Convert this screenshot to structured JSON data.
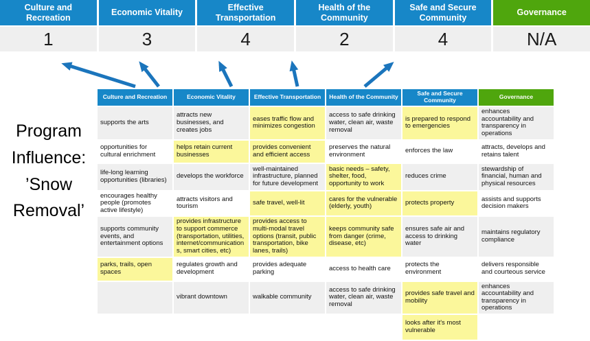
{
  "program_label": "Program Influence: ’Snow Removal’",
  "colors": {
    "header_blue": "#1787C8",
    "governance_green": "#4FA60D",
    "score_row_gray": "#EFEFEF",
    "row_gray": "#EFEFEF",
    "highlight_yellow": "#FBF79B",
    "arrow_blue": "#1B75BC"
  },
  "banner": {
    "columns": [
      {
        "label": "Culture and Recreation",
        "value": "1",
        "theme": "blue"
      },
      {
        "label": "Economic Vitality",
        "value": "3",
        "theme": "blue"
      },
      {
        "label": "Effective Transportation",
        "value": "4",
        "theme": "blue"
      },
      {
        "label": "Health of the Community",
        "value": "2",
        "theme": "blue"
      },
      {
        "label": "Safe and Secure Community",
        "value": "4",
        "theme": "blue"
      },
      {
        "label": "Governance",
        "value": "N/A",
        "theme": "green"
      }
    ]
  },
  "matrix": {
    "headers": [
      {
        "label": "Culture and Recreation",
        "theme": "blue"
      },
      {
        "label": "Economic Vitality",
        "theme": "blue"
      },
      {
        "label": "Effective Transportation",
        "theme": "blue"
      },
      {
        "label": "Health of the Community",
        "theme": "blue"
      },
      {
        "label": "Safe and Secure Community",
        "theme": "blue"
      },
      {
        "label": "Governance",
        "theme": "green"
      }
    ],
    "rows": [
      [
        {
          "t": "supports the arts",
          "hl": false
        },
        {
          "t": "attracts new businesses, and creates jobs",
          "hl": false
        },
        {
          "t": "eases traffic flow and minimizes congestion",
          "hl": true
        },
        {
          "t": "access to safe drinking water, clean air, waste removal",
          "hl": false
        },
        {
          "t": "is prepared to respond to emergencies",
          "hl": true
        },
        {
          "t": "enhances accountability and transparency in operations",
          "hl": false
        }
      ],
      [
        {
          "t": "opportunities for cultural enrichment",
          "hl": false
        },
        {
          "t": "helps retain current businesses",
          "hl": true
        },
        {
          "t": "provides convenient and efficient access",
          "hl": true
        },
        {
          "t": "preserves the natural environment",
          "hl": false
        },
        {
          "t": "enforces the law",
          "hl": false
        },
        {
          "t": "attracts, develops and retains talent",
          "hl": false
        }
      ],
      [
        {
          "t": "life-long learning opportunities (libraries)",
          "hl": false
        },
        {
          "t": "develops the workforce",
          "hl": false
        },
        {
          "t": "well-maintained infrastructure, planned for future development",
          "hl": false
        },
        {
          "t": "basic needs – safety, shelter, food, opportunity to work",
          "hl": true
        },
        {
          "t": "reduces crime",
          "hl": false
        },
        {
          "t": "stewardship of financial, human and physical resources",
          "hl": false
        }
      ],
      [
        {
          "t": "encourages healthy people (promotes active lifestyle)",
          "hl": false
        },
        {
          "t": "attracts visitors and tourism",
          "hl": false
        },
        {
          "t": "safe travel, well-lit",
          "hl": true
        },
        {
          "t": "cares for the vulnerable (elderly, youth)",
          "hl": true
        },
        {
          "t": "protects property",
          "hl": true
        },
        {
          "t": "assists and supports decision makers",
          "hl": false
        }
      ],
      [
        {
          "t": "supports community events, and entertainment options",
          "hl": false
        },
        {
          "t": "provides infrastructure to support commerce (transportation, utilities, internet/communications, smart cities, etc)",
          "hl": true
        },
        {
          "t": "provides access to multi-modal travel options (transit, public transportation, bike lanes, trails)",
          "hl": true
        },
        {
          "t": "keeps community safe from danger (crime, disease, etc)",
          "hl": true
        },
        {
          "t": "ensures safe air and access to drinking water",
          "hl": false
        },
        {
          "t": "maintains regulatory compliance",
          "hl": false
        }
      ],
      [
        {
          "t": "parks, trails, open spaces",
          "hl": true
        },
        {
          "t": "regulates growth and development",
          "hl": false
        },
        {
          "t": "provides adequate parking",
          "hl": false
        },
        {
          "t": "access to health care",
          "hl": false
        },
        {
          "t": "protects the environment",
          "hl": false
        },
        {
          "t": "delivers responsible and courteous service",
          "hl": false
        }
      ],
      [
        {
          "t": "",
          "hl": false
        },
        {
          "t": "vibrant downtown",
          "hl": false
        },
        {
          "t": "walkable community",
          "hl": false
        },
        {
          "t": "access to safe drinking water, clean air, waste removal",
          "hl": false
        },
        {
          "t": "provides safe travel and mobility",
          "hl": true
        },
        {
          "t": "enhances accountability and transparency in operations",
          "hl": false
        }
      ],
      [
        {
          "t": "",
          "hl": false
        },
        {
          "t": "",
          "hl": false
        },
        {
          "t": "",
          "hl": false
        },
        {
          "t": "",
          "hl": false
        },
        {
          "t": "looks after it's most vulnerable",
          "hl": true
        },
        {
          "t": "",
          "hl": false
        }
      ]
    ]
  }
}
